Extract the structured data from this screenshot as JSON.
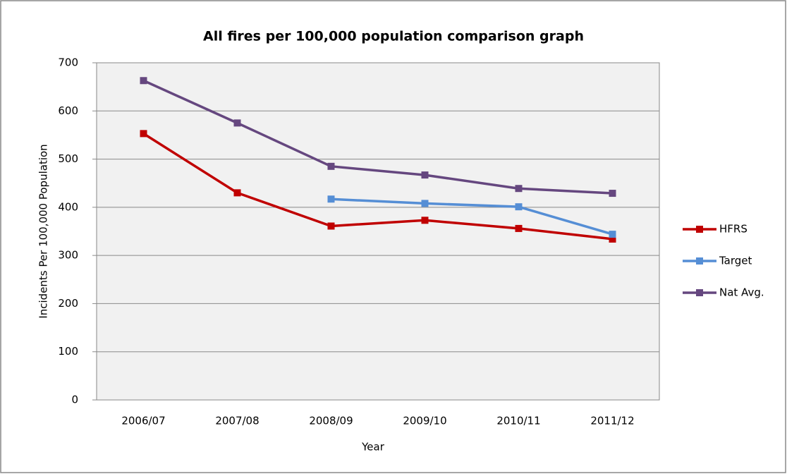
{
  "chart_data": {
    "type": "line",
    "title": "All fires per 100,000 population comparison graph",
    "x_label": "Year",
    "y_label": "Incidents Per 100,000 Population",
    "categories": [
      "2006/07",
      "2007/08",
      "2008/09",
      "2009/10",
      "2010/11",
      "2011/12"
    ],
    "series": [
      {
        "name": "HFRS",
        "color": "#c00000",
        "values": [
          553,
          430,
          361,
          373,
          356,
          334
        ]
      },
      {
        "name": "Target",
        "color": "#558ed5",
        "values": [
          null,
          null,
          417,
          408,
          401,
          344
        ]
      },
      {
        "name": "Nat Avg.",
        "color": "#65477f",
        "values": [
          663,
          575,
          485,
          467,
          439,
          429
        ]
      }
    ],
    "ylim": [
      0,
      700
    ],
    "yticks": [
      0,
      100,
      200,
      300,
      400,
      500,
      600,
      700
    ],
    "grid": true,
    "legend": "right"
  }
}
